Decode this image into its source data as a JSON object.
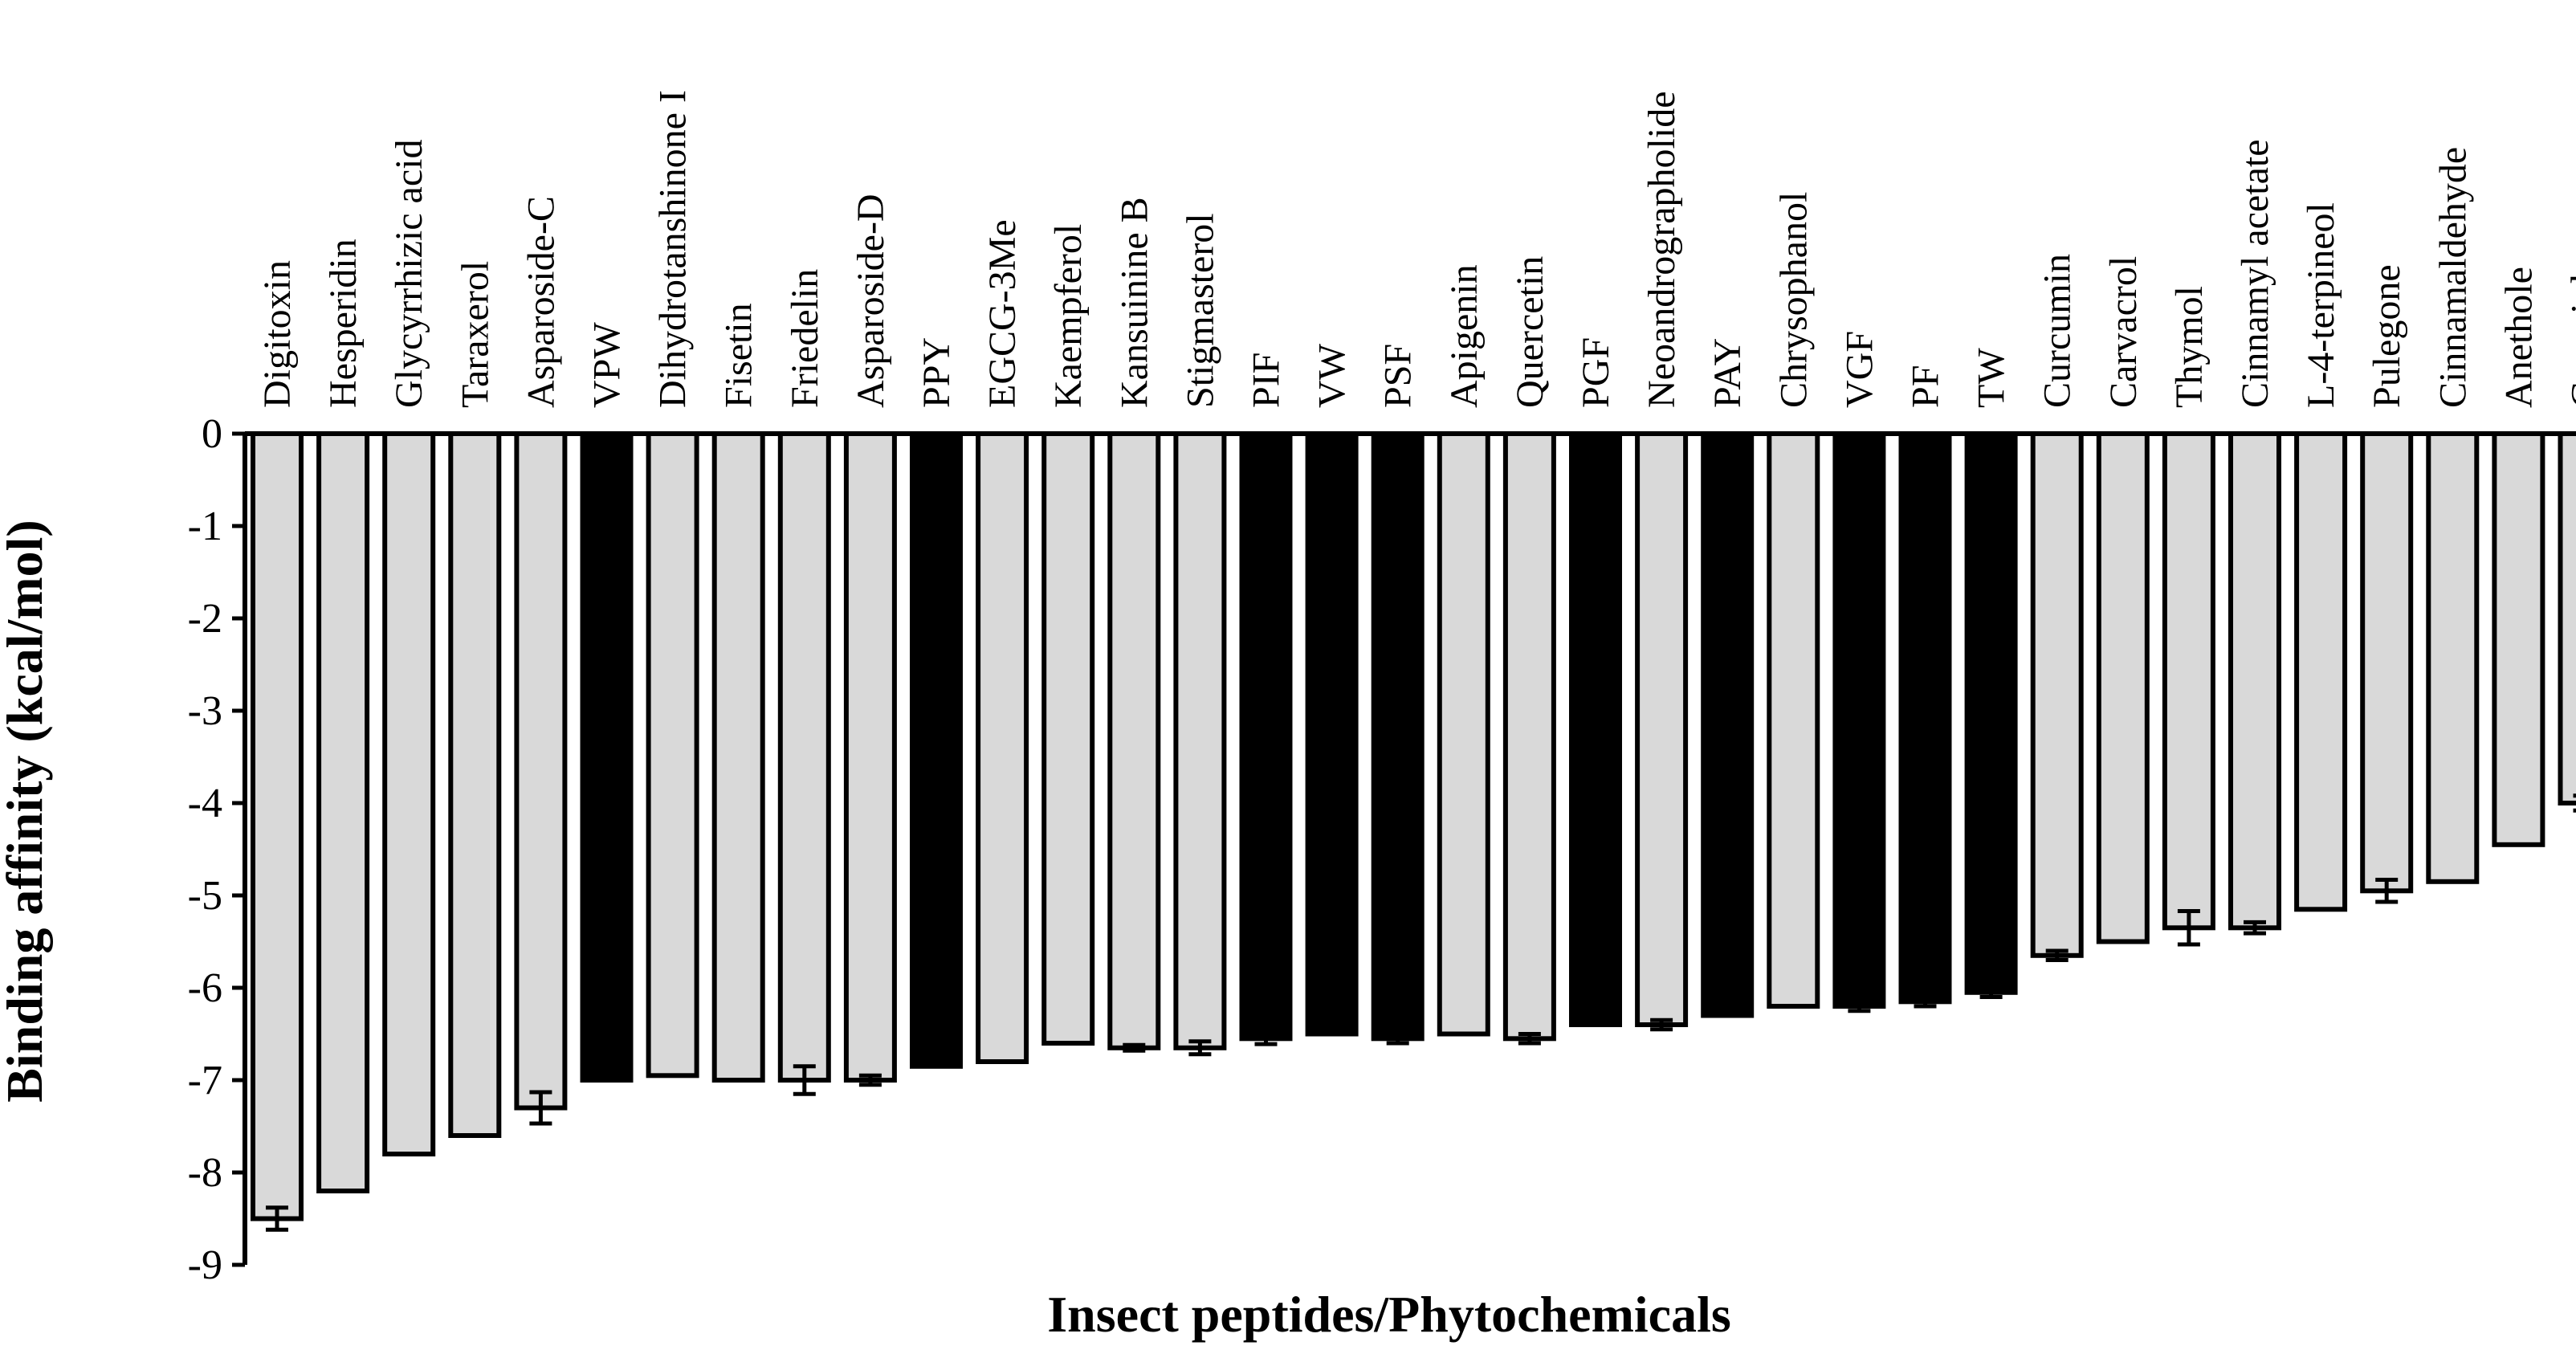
{
  "chart_data": {
    "type": "bar",
    "title": "",
    "xlabel": "Insect peptides/Phytochemicals",
    "ylabel": "Binding affinity (kcal/mol)",
    "ylim": [
      -9,
      0
    ],
    "yticks": [
      "0",
      "-1",
      "-2",
      "-3",
      "-4",
      "-5",
      "-6",
      "-7",
      "-8",
      "-9"
    ],
    "ytick_values": [
      0,
      -1,
      -2,
      -3,
      -4,
      -5,
      -6,
      -7,
      -8,
      -9
    ],
    "grid": false,
    "legend": "none",
    "categories": [
      "Digitoxin",
      "Hesperidin",
      "Glycyrrhizic acid",
      "Taraxerol",
      "Asparoside-C",
      "VPW",
      "Dihydrotanshinone I",
      "Fisetin",
      "Friedelin",
      "Asparoside-D",
      "PPY",
      "EGCG-3Me",
      "Kaempferol",
      "Kansuinine B",
      "Stigmasterol",
      "PIF",
      "VW",
      "PSF",
      "Apigenin",
      "Quercetin",
      "PGF",
      "Neoandrographolide",
      "PAY",
      "Chrysophanol",
      "VGF",
      "PF",
      "TW",
      "Curcumin",
      "Carvacrol",
      "Thymol",
      "Cinnamyl acetate",
      "L-4-terpineol",
      "Pulegone",
      "Cinnamaldehyde",
      "Anethole",
      "Geraniol"
    ],
    "values": [
      -8.5,
      -8.2,
      -7.8,
      -7.6,
      -7.3,
      -7.0,
      -6.95,
      -7.0,
      -7.0,
      -7.0,
      -6.85,
      -6.8,
      -6.6,
      -6.65,
      -6.65,
      -6.55,
      -6.5,
      -6.55,
      -6.5,
      -6.55,
      -6.4,
      -6.4,
      -6.3,
      -6.2,
      -6.2,
      -6.15,
      -6.05,
      -5.65,
      -5.5,
      -5.35,
      -5.35,
      -5.15,
      -4.95,
      -4.85,
      -4.45,
      -4.0
    ],
    "errors": [
      0.12,
      0,
      0,
      0,
      0.17,
      0,
      0,
      0,
      0.15,
      0.05,
      0,
      0,
      0,
      0.03,
      0.07,
      0.06,
      0,
      0.05,
      0,
      0.05,
      0,
      0.05,
      0,
      0,
      0.05,
      0.05,
      0.05,
      0.05,
      0,
      0.18,
      0.06,
      0,
      0.12,
      0,
      0,
      0.08
    ],
    "groups": [
      "phytochemical",
      "phytochemical",
      "phytochemical",
      "phytochemical",
      "phytochemical",
      "peptide",
      "phytochemical",
      "phytochemical",
      "phytochemical",
      "phytochemical",
      "peptide",
      "phytochemical",
      "phytochemical",
      "phytochemical",
      "phytochemical",
      "peptide",
      "peptide",
      "peptide",
      "phytochemical",
      "phytochemical",
      "peptide",
      "phytochemical",
      "peptide",
      "phytochemical",
      "peptide",
      "peptide",
      "peptide",
      "phytochemical",
      "phytochemical",
      "phytochemical",
      "phytochemical",
      "phytochemical",
      "phytochemical",
      "phytochemical",
      "phytochemical",
      "phytochemical"
    ],
    "colors": {
      "peptide": "#000000",
      "phytochemical": "#d9d9d9",
      "outline": "#000000"
    }
  }
}
